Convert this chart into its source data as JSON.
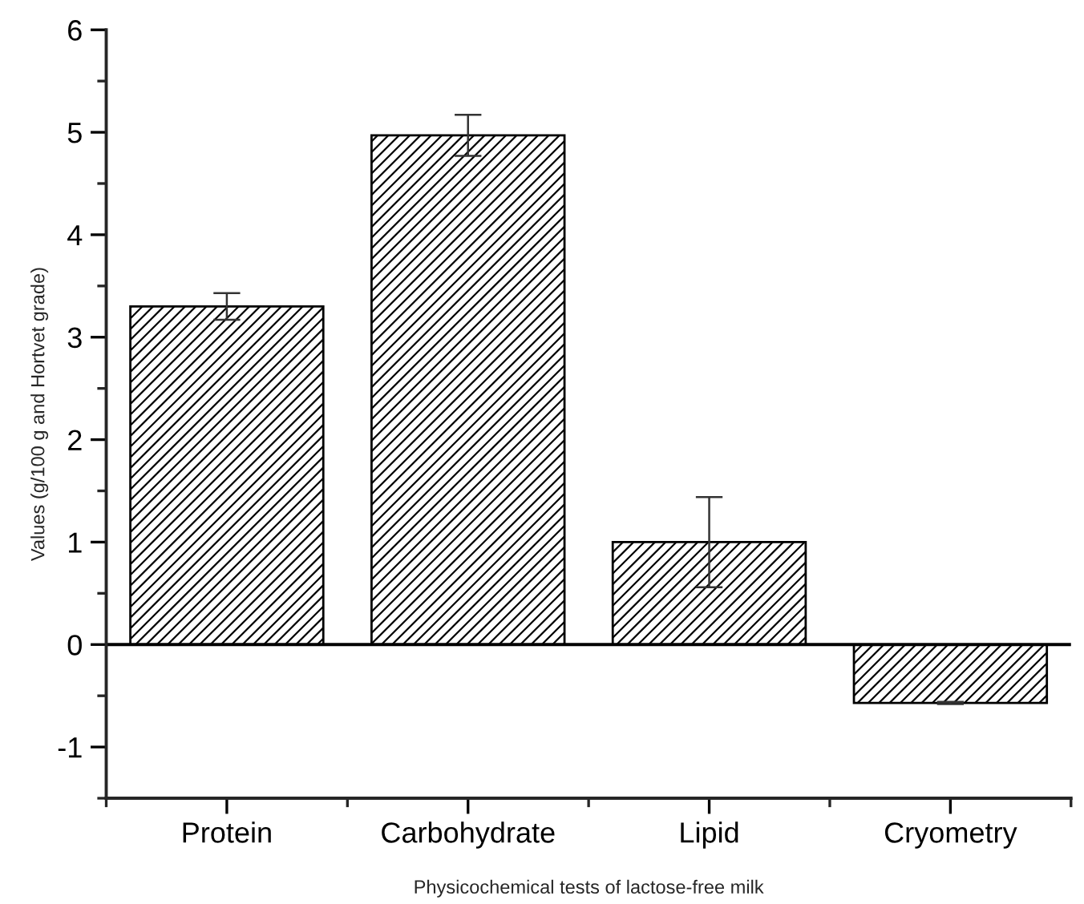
{
  "chart_data": {
    "type": "bar",
    "xlabel": "Physicochemical tests of lactose-free milk",
    "ylabel": "Values (g/100 g and Hortvet grade)",
    "categories": [
      "Protein",
      "Carbohydrate",
      "Lipid",
      "Cryometry"
    ],
    "values": [
      3.3,
      4.97,
      1.0,
      -0.57
    ],
    "errors": [
      0.13,
      0.2,
      0.44,
      0.01
    ],
    "color": "#000000",
    "ylim": [
      -1.5,
      6
    ],
    "yticks": [
      {
        "value": -1.5,
        "label": null
      },
      -1,
      {
        "value": -0.5,
        "label": null
      },
      0,
      {
        "value": 0.5,
        "label": null
      },
      1,
      {
        "value": 1.5,
        "label": null
      },
      2,
      {
        "value": 2.5,
        "label": null
      },
      3,
      {
        "value": 3.5,
        "label": null
      },
      4,
      {
        "value": 4.5,
        "label": null
      },
      5,
      {
        "value": 5.5,
        "label": null
      },
      6
    ],
    "ref_lines": [
      {
        "axis": "y",
        "value": 0,
        "color": "#000000"
      }
    ],
    "grid": false,
    "legend": false
  }
}
